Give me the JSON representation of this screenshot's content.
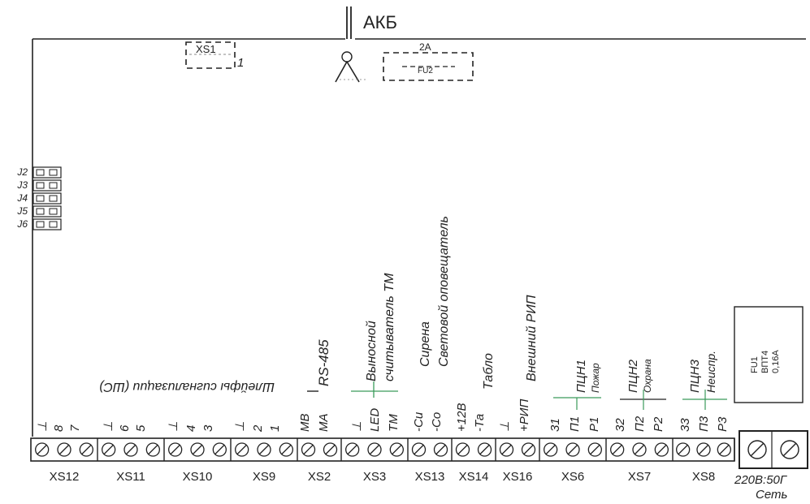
{
  "battery_label": "АКБ",
  "jumper_xs1": {
    "label": "XS1",
    "tag": "1"
  },
  "fuse_fu2": {
    "rating": "2A",
    "label": "FU2"
  },
  "jumpers_left": [
    "J2",
    "J3",
    "J4",
    "J5",
    "J6"
  ],
  "group_labels": {
    "loops": "Шлейфы сигнализации (ШС)",
    "rs485": "RS-485",
    "reader": [
      "Выносной",
      "считыватель ТМ"
    ],
    "siren": "Сирена",
    "light": "Световой оповещатель",
    "tablo": "Табло",
    "rip": "Внешний РИП",
    "pcn1": [
      "ПЦН1",
      "Пожар"
    ],
    "pcn2": [
      "ПЦН2",
      "Охрана"
    ],
    "pcn3": [
      "ПЦН3",
      "Неиспр."
    ]
  },
  "fuse_fu1": [
    "FU1",
    "ВПТ4",
    "0,16А"
  ],
  "terminal_pins": [
    "⊥",
    "8",
    "7",
    "⊥",
    "6",
    "5",
    "⊥",
    "4",
    "3",
    "⊥",
    "2",
    "1",
    "МВ",
    "МА",
    "⊥",
    "LED",
    "ТМ",
    "-Си",
    "-Со",
    "+12В",
    "-Та",
    "⊥",
    "+РИП",
    "31",
    "П1",
    "Р1",
    "32",
    "П2",
    "Р2",
    "33",
    "П3",
    "Р3"
  ],
  "connectors": [
    "XS12",
    "XS11",
    "XS10",
    "XS9",
    "XS2",
    "XS3",
    "XS13",
    "XS14",
    "XS16",
    "XS6",
    "XS7",
    "XS8"
  ],
  "power": {
    "rating": "220В:50Г",
    "label": "Сеть"
  }
}
